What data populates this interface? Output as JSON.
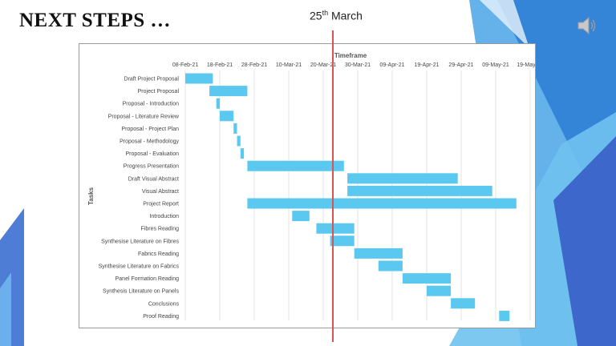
{
  "slide": {
    "title": "NEXT STEPS …",
    "marker_label_main": "25",
    "marker_label_sup": "th",
    "marker_label_rest": " March",
    "audio_icon": "speaker-icon"
  },
  "colors": {
    "bar": "#5bc8f0",
    "marker": "#d9534f",
    "accent_blue": "#3fa9e8"
  },
  "chart_data": {
    "type": "gantt",
    "title": "Timeframe",
    "ylabel": "Tasks",
    "xlabel": "",
    "x_ticks": [
      "08-Feb-21",
      "18-Feb-21",
      "28-Feb-21",
      "10-Mar-21",
      "20-Mar-21",
      "30-Mar-21",
      "09-Apr-21",
      "19-Apr-21",
      "29-Apr-21",
      "09-May-21",
      "19-May-21"
    ],
    "xlim": [
      "2021-02-08",
      "2021-05-19"
    ],
    "marker_date": "2021-03-25",
    "grid": true,
    "tasks": [
      {
        "name": "Draft Project Proposal",
        "start": "2021-02-08",
        "end": "2021-02-16"
      },
      {
        "name": "Project Proposal",
        "start": "2021-02-15",
        "end": "2021-02-26"
      },
      {
        "name": "Proposal - Introduction",
        "start": "2021-02-17",
        "end": "2021-02-18"
      },
      {
        "name": "Proposal - Literature Review",
        "start": "2021-02-18",
        "end": "2021-02-22"
      },
      {
        "name": "Proposal - Project Plan",
        "start": "2021-02-22",
        "end": "2021-02-23"
      },
      {
        "name": "Proposal - Methodology",
        "start": "2021-02-23",
        "end": "2021-02-24"
      },
      {
        "name": "Proposal - Evaluation",
        "start": "2021-02-24",
        "end": "2021-02-25"
      },
      {
        "name": "Progress Presentation",
        "start": "2021-02-26",
        "end": "2021-03-26"
      },
      {
        "name": "Draft Visual Abstract",
        "start": "2021-03-27",
        "end": "2021-04-28"
      },
      {
        "name": "Visual Abstract",
        "start": "2021-03-27",
        "end": "2021-05-08"
      },
      {
        "name": "Project Report",
        "start": "2021-02-26",
        "end": "2021-05-15"
      },
      {
        "name": "Introduction",
        "start": "2021-03-11",
        "end": "2021-03-16"
      },
      {
        "name": "Fibres Reading",
        "start": "2021-03-18",
        "end": "2021-03-29"
      },
      {
        "name": "Synthesise Literature on Fibres",
        "start": "2021-03-22",
        "end": "2021-03-29"
      },
      {
        "name": "Fabrics Reading",
        "start": "2021-03-29",
        "end": "2021-04-12"
      },
      {
        "name": "Synthesise Literature on Fabrics",
        "start": "2021-04-05",
        "end": "2021-04-12"
      },
      {
        "name": "Panel Formation Reading",
        "start": "2021-04-12",
        "end": "2021-04-26"
      },
      {
        "name": "Synthesis Literature on Panels",
        "start": "2021-04-19",
        "end": "2021-04-26"
      },
      {
        "name": "Conclusions",
        "start": "2021-04-26",
        "end": "2021-05-03"
      },
      {
        "name": "Proof Reading",
        "start": "2021-05-10",
        "end": "2021-05-13"
      }
    ]
  }
}
